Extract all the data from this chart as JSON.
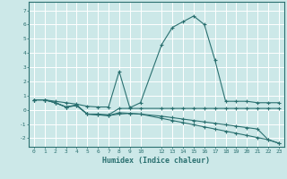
{
  "xlabel": "Humidex (Indice chaleur)",
  "bg_color": "#cce8e8",
  "grid_color": "#ffffff",
  "line_color": "#2a7070",
  "xlim": [
    -0.5,
    23.5
  ],
  "ylim": [
    -2.6,
    7.6
  ],
  "xticks": [
    0,
    1,
    2,
    3,
    4,
    5,
    6,
    7,
    8,
    9,
    10,
    12,
    13,
    14,
    15,
    16,
    17,
    18,
    19,
    20,
    21,
    22,
    23
  ],
  "yticks": [
    -2,
    -1,
    0,
    1,
    2,
    3,
    4,
    5,
    6,
    7
  ],
  "line1_x": [
    0,
    1,
    2,
    3,
    4,
    5,
    6,
    7,
    8,
    9,
    10,
    12,
    13,
    14,
    15,
    16,
    17,
    18,
    19,
    20,
    21,
    22,
    23
  ],
  "line1_y": [
    0.7,
    0.7,
    0.6,
    0.5,
    0.4,
    0.25,
    0.2,
    0.2,
    2.7,
    0.15,
    0.5,
    4.6,
    5.8,
    6.2,
    6.6,
    6.0,
    3.5,
    0.6,
    0.6,
    0.6,
    0.5,
    0.5,
    0.5
  ],
  "line2_x": [
    0,
    1,
    2,
    3,
    4,
    5,
    6,
    7,
    8,
    9,
    10,
    12,
    13,
    14,
    15,
    16,
    17,
    18,
    19,
    20,
    21,
    22,
    23
  ],
  "line2_y": [
    0.7,
    0.7,
    0.5,
    0.2,
    0.35,
    -0.3,
    -0.3,
    -0.35,
    0.1,
    0.1,
    0.1,
    0.1,
    0.1,
    0.1,
    0.1,
    0.1,
    0.1,
    0.1,
    0.1,
    0.1,
    0.1,
    0.1,
    0.1
  ],
  "line3_x": [
    0,
    1,
    2,
    3,
    4,
    5,
    6,
    7,
    8,
    9,
    10,
    12,
    13,
    14,
    15,
    16,
    17,
    18,
    19,
    20,
    21,
    22,
    23
  ],
  "line3_y": [
    0.7,
    0.7,
    0.5,
    0.2,
    0.3,
    -0.3,
    -0.35,
    -0.4,
    -0.3,
    -0.25,
    -0.3,
    -0.45,
    -0.55,
    -0.65,
    -0.75,
    -0.85,
    -0.95,
    -1.05,
    -1.15,
    -1.25,
    -1.35,
    -2.1,
    -2.35
  ],
  "line4_x": [
    0,
    1,
    2,
    3,
    4,
    5,
    6,
    7,
    8,
    9,
    10,
    12,
    13,
    14,
    15,
    16,
    17,
    18,
    19,
    20,
    21,
    22,
    23
  ],
  "line4_y": [
    0.7,
    0.7,
    0.5,
    0.2,
    0.3,
    -0.3,
    -0.35,
    -0.4,
    -0.2,
    -0.25,
    -0.3,
    -0.6,
    -0.75,
    -0.9,
    -1.05,
    -1.2,
    -1.35,
    -1.5,
    -1.65,
    -1.8,
    -1.95,
    -2.1,
    -2.35
  ]
}
